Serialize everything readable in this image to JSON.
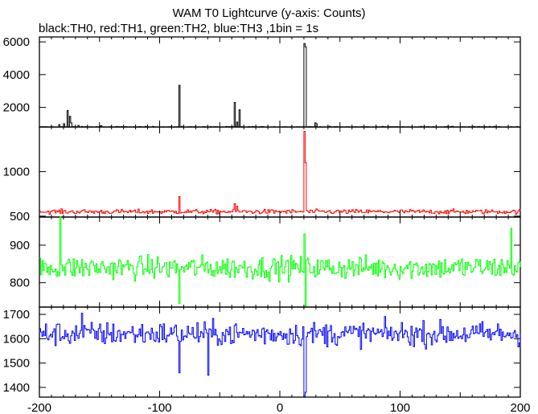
{
  "title": "WAM T0 Lightcurve (y-axis: Counts)",
  "subtitle": "black:TH0, red:TH1, green:TH2, blue:TH3 ,1bin = 1s",
  "chart_data": {
    "type": "line",
    "x": {
      "label": "",
      "range": [
        -200,
        200
      ],
      "ticks": [
        -200,
        -100,
        0,
        100,
        200
      ]
    },
    "grid": false,
    "legend": "in subtitle",
    "panels": [
      {
        "series": "TH0",
        "color": "#000000",
        "ylim": [
          800,
          6300
        ],
        "yticks": [
          2000,
          4000,
          6000
        ],
        "baseline": 800,
        "noise": 25,
        "features": [
          {
            "x": -184,
            "y": 950
          },
          {
            "x": -180,
            "y": 1000
          },
          {
            "x": -177,
            "y": 1800
          },
          {
            "x": -175,
            "y": 1450
          },
          {
            "x": -174,
            "y": 1050
          },
          {
            "x": -168,
            "y": 900
          },
          {
            "x": -150,
            "y": 850
          },
          {
            "x": -149,
            "y": 880
          },
          {
            "x": -84,
            "y": 3350
          },
          {
            "x": -38,
            "y": 2300
          },
          {
            "x": -36,
            "y": 1100
          },
          {
            "x": -34,
            "y": 1850
          },
          {
            "x": 20,
            "y": 5900
          },
          {
            "x": 21,
            "y": 5700
          },
          {
            "x": 29,
            "y": 1050
          },
          {
            "x": 30,
            "y": 1000
          }
        ]
      },
      {
        "series": "TH1",
        "color": "#ff0000",
        "ylim": [
          490,
          1500
        ],
        "yticks": [
          500,
          1000
        ],
        "baseline": 550,
        "noise": 18,
        "features": [
          {
            "x": -84,
            "y": 720
          },
          {
            "x": -38,
            "y": 640
          },
          {
            "x": -36,
            "y": 610
          },
          {
            "x": 20,
            "y": 1450
          },
          {
            "x": 21,
            "y": 1100
          }
        ]
      },
      {
        "series": "TH2",
        "color": "#00ff00",
        "ylim": [
          735,
          975
        ],
        "yticks": [
          800,
          900
        ],
        "baseline": 840,
        "noise": 22,
        "features": [
          {
            "x": -183,
            "y": 975
          },
          {
            "x": -84,
            "y": 745
          },
          {
            "x": 21,
            "y": 737
          },
          {
            "x": 20,
            "y": 930
          },
          {
            "x": 192,
            "y": 945
          }
        ]
      },
      {
        "series": "TH3",
        "color": "#0000ff",
        "ylim": [
          1360,
          1730
        ],
        "yticks": [
          1400,
          1500,
          1600,
          1700
        ],
        "baseline": 1620,
        "noise": 35,
        "features": [
          {
            "x": -84,
            "y": 1460
          },
          {
            "x": -60,
            "y": 1450
          },
          {
            "x": 20,
            "y": 1362
          },
          {
            "x": 21,
            "y": 1380
          },
          {
            "x": -165,
            "y": 1705
          }
        ]
      }
    ]
  }
}
